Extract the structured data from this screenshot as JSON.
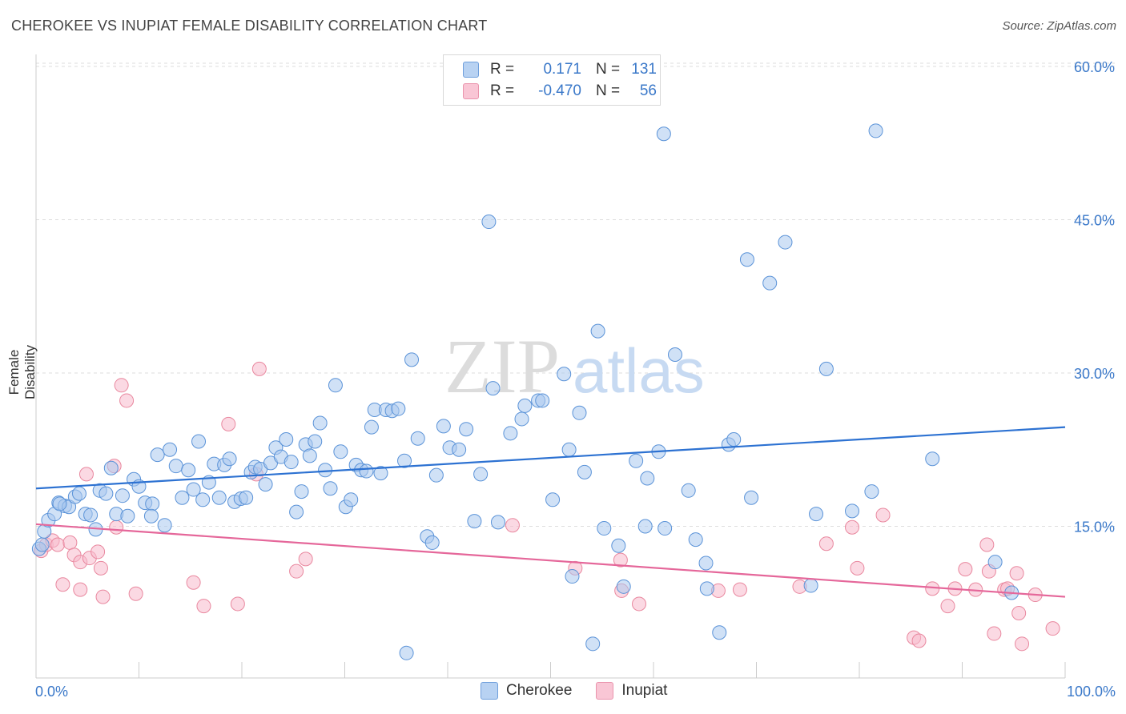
{
  "title": "CHEROKEE VS INUPIAT FEMALE DISABILITY CORRELATION CHART",
  "source": "Source: ZipAtlas.com",
  "watermark": {
    "zip": "ZIP",
    "atlas": "atlas"
  },
  "legend": {
    "rows": [
      {
        "r_label": "R =",
        "r_value": "0.171",
        "n_label": "N =",
        "n_value": "131"
      },
      {
        "r_label": "R =",
        "r_value": "-0.470",
        "n_label": "N =",
        "n_value": "56"
      }
    ]
  },
  "colors": {
    "cherokee_fill": "#a9c8ef",
    "cherokee_stroke": "#5b93d8",
    "cherokee_line": "#2d72d2",
    "inupiat_fill": "#f7b9cc",
    "inupiat_stroke": "#e9889f",
    "inupiat_line": "#e5679a",
    "axis_label": "#3a78c9"
  },
  "chart_data": {
    "type": "scatter",
    "title": "CHEROKEE VS INUPIAT FEMALE DISABILITY CORRELATION CHART",
    "xlabel": "",
    "ylabel": "Female Disability",
    "xlim": [
      0,
      100
    ],
    "ylim": [
      0,
      60
    ],
    "x_tick_labels": [
      "0.0%",
      "100.0%"
    ],
    "y_ticks": [
      15,
      30,
      45,
      60
    ],
    "y_tick_labels": [
      "15.0%",
      "30.0%",
      "45.0%",
      "60.0%"
    ],
    "grid": "horizontal dashed",
    "legend_position": "top-center",
    "series": [
      {
        "name": "Cherokee",
        "R": 0.171,
        "N": 131,
        "trend": {
          "x": [
            0,
            100
          ],
          "y": [
            18.7,
            24.7
          ]
        },
        "points": [
          [
            0.3,
            12.8
          ],
          [
            0.6,
            13.2
          ],
          [
            0.8,
            14.5
          ],
          [
            1.2,
            15.6
          ],
          [
            1.8,
            16.2
          ],
          [
            2.2,
            17.3
          ],
          [
            2.8,
            17
          ],
          [
            3.2,
            16.9
          ],
          [
            3.8,
            17.9
          ],
          [
            4.2,
            18.2
          ],
          [
            4.8,
            16.2
          ],
          [
            5.3,
            16.1
          ],
          [
            5.8,
            14.7
          ],
          [
            6.2,
            18.5
          ],
          [
            6.8,
            18.2
          ],
          [
            7.3,
            20.7
          ],
          [
            7.8,
            16.2
          ],
          [
            8.4,
            18
          ],
          [
            8.9,
            16
          ],
          [
            9.5,
            19.6
          ],
          [
            10,
            18.9
          ],
          [
            10.6,
            17.3
          ],
          [
            11.3,
            17.2
          ],
          [
            11.8,
            22
          ],
          [
            12.5,
            15.1
          ],
          [
            13,
            22.5
          ],
          [
            13.6,
            20.9
          ],
          [
            14.2,
            17.8
          ],
          [
            14.8,
            20.5
          ],
          [
            15.3,
            18.6
          ],
          [
            15.8,
            23.3
          ],
          [
            16.2,
            17.6
          ],
          [
            16.8,
            19.3
          ],
          [
            17.3,
            21.1
          ],
          [
            17.8,
            17.8
          ],
          [
            18.3,
            21
          ],
          [
            18.8,
            21.6
          ],
          [
            19.3,
            17.4
          ],
          [
            19.9,
            17.7
          ],
          [
            20.4,
            17.8
          ],
          [
            20.9,
            20.3
          ],
          [
            21.3,
            20.8
          ],
          [
            21.8,
            20.6
          ],
          [
            22.3,
            19.1
          ],
          [
            22.8,
            21.2
          ],
          [
            23.3,
            22.7
          ],
          [
            23.8,
            21.8
          ],
          [
            24.3,
            23.5
          ],
          [
            24.8,
            21.3
          ],
          [
            25.3,
            16.4
          ],
          [
            25.8,
            18.4
          ],
          [
            26.2,
            23
          ],
          [
            26.6,
            21.9
          ],
          [
            27.1,
            23.3
          ],
          [
            27.6,
            25.1
          ],
          [
            28.1,
            20.5
          ],
          [
            28.6,
            18.7
          ],
          [
            29.1,
            28.8
          ],
          [
            29.6,
            22.3
          ],
          [
            30.1,
            16.9
          ],
          [
            30.6,
            17.6
          ],
          [
            31.1,
            21
          ],
          [
            31.6,
            20.5
          ],
          [
            32.1,
            20.4
          ],
          [
            32.6,
            24.7
          ],
          [
            32.9,
            26.4
          ],
          [
            33.5,
            20.2
          ],
          [
            34,
            26.4
          ],
          [
            34.6,
            26.3
          ],
          [
            35.2,
            26.5
          ],
          [
            35.8,
            21.4
          ],
          [
            36.5,
            31.3
          ],
          [
            37.1,
            23.6
          ],
          [
            38,
            14
          ],
          [
            38.5,
            13.4
          ],
          [
            38.9,
            20
          ],
          [
            39.6,
            24.8
          ],
          [
            40.2,
            22.7
          ],
          [
            41.1,
            22.5
          ],
          [
            41.8,
            24.5
          ],
          [
            42.6,
            15.5
          ],
          [
            43.2,
            20.1
          ],
          [
            44,
            44.8
          ],
          [
            44.4,
            28.5
          ],
          [
            44.9,
            15.4
          ],
          [
            46.1,
            24.1
          ],
          [
            47.2,
            25.5
          ],
          [
            47.5,
            26.8
          ],
          [
            48.8,
            27.3
          ],
          [
            49.2,
            27.3
          ],
          [
            50.2,
            17.6
          ],
          [
            51.3,
            29.9
          ],
          [
            51.8,
            22.5
          ],
          [
            52.1,
            10.1
          ],
          [
            52.8,
            26.1
          ],
          [
            53.3,
            20.3
          ],
          [
            54.1,
            3.5
          ],
          [
            54.6,
            34.1
          ],
          [
            55.2,
            14.8
          ],
          [
            56.6,
            13.1
          ],
          [
            57.1,
            9.1
          ],
          [
            58.3,
            21.4
          ],
          [
            59.2,
            15
          ],
          [
            59.4,
            19.7
          ],
          [
            60.5,
            22.3
          ],
          [
            61,
            53.4
          ],
          [
            61.1,
            14.8
          ],
          [
            62.1,
            31.8
          ],
          [
            63.4,
            18.5
          ],
          [
            64.1,
            13.7
          ],
          [
            65.1,
            11.4
          ],
          [
            65.2,
            8.9
          ],
          [
            66.4,
            4.6
          ],
          [
            67.3,
            23
          ],
          [
            67.8,
            23.5
          ],
          [
            69.1,
            41.1
          ],
          [
            69.5,
            17.8
          ],
          [
            71.3,
            38.8
          ],
          [
            72.8,
            42.8
          ],
          [
            75.3,
            9.2
          ],
          [
            75.8,
            16.2
          ],
          [
            76.8,
            30.4
          ],
          [
            79.3,
            16.5
          ],
          [
            81.2,
            18.4
          ],
          [
            81.6,
            53.7
          ],
          [
            87.1,
            21.6
          ],
          [
            93.2,
            11.5
          ],
          [
            94.8,
            8.5
          ],
          [
            2.3,
            17.2
          ],
          [
            11.2,
            16
          ],
          [
            36,
            2.6
          ]
        ]
      },
      {
        "name": "Inupiat",
        "R": -0.47,
        "N": 56,
        "trend": {
          "x": [
            0,
            100
          ],
          "y": [
            15.2,
            8.1
          ]
        },
        "points": [
          [
            0.5,
            12.6
          ],
          [
            1,
            13.2
          ],
          [
            1.6,
            13.6
          ],
          [
            2.1,
            13.2
          ],
          [
            2.6,
            9.3
          ],
          [
            3.3,
            13.4
          ],
          [
            3.7,
            12.2
          ],
          [
            4.3,
            11.5
          ],
          [
            4.3,
            8.8
          ],
          [
            4.9,
            20.1
          ],
          [
            5.2,
            11.9
          ],
          [
            6,
            12.5
          ],
          [
            6.3,
            10.9
          ],
          [
            6.5,
            8.1
          ],
          [
            7.6,
            20.9
          ],
          [
            7.8,
            14.9
          ],
          [
            8.3,
            28.8
          ],
          [
            8.8,
            27.3
          ],
          [
            9.7,
            8.4
          ],
          [
            15.3,
            9.5
          ],
          [
            16.3,
            7.2
          ],
          [
            18.7,
            25
          ],
          [
            19.6,
            7.4
          ],
          [
            21.4,
            20.1
          ],
          [
            21.7,
            30.4
          ],
          [
            25.3,
            10.6
          ],
          [
            26.2,
            11.8
          ],
          [
            46.3,
            15.1
          ],
          [
            52.4,
            10.9
          ],
          [
            56.8,
            11.7
          ],
          [
            56.9,
            8.7
          ],
          [
            58.6,
            7.4
          ],
          [
            66.3,
            8.7
          ],
          [
            68.4,
            8.8
          ],
          [
            74.2,
            9.1
          ],
          [
            76.8,
            13.3
          ],
          [
            79.3,
            14.9
          ],
          [
            79.8,
            10.9
          ],
          [
            82.3,
            16.1
          ],
          [
            85.3,
            4.1
          ],
          [
            85.8,
            3.8
          ],
          [
            87.1,
            8.9
          ],
          [
            88.6,
            7.2
          ],
          [
            89.3,
            8.9
          ],
          [
            90.3,
            10.8
          ],
          [
            91.3,
            8.8
          ],
          [
            92.4,
            13.2
          ],
          [
            92.6,
            10.6
          ],
          [
            93.1,
            4.5
          ],
          [
            94.1,
            8.8
          ],
          [
            94.4,
            8.9
          ],
          [
            95.3,
            10.4
          ],
          [
            95.5,
            6.5
          ],
          [
            95.8,
            3.5
          ],
          [
            97.1,
            8.3
          ],
          [
            98.8,
            5
          ]
        ]
      }
    ]
  }
}
